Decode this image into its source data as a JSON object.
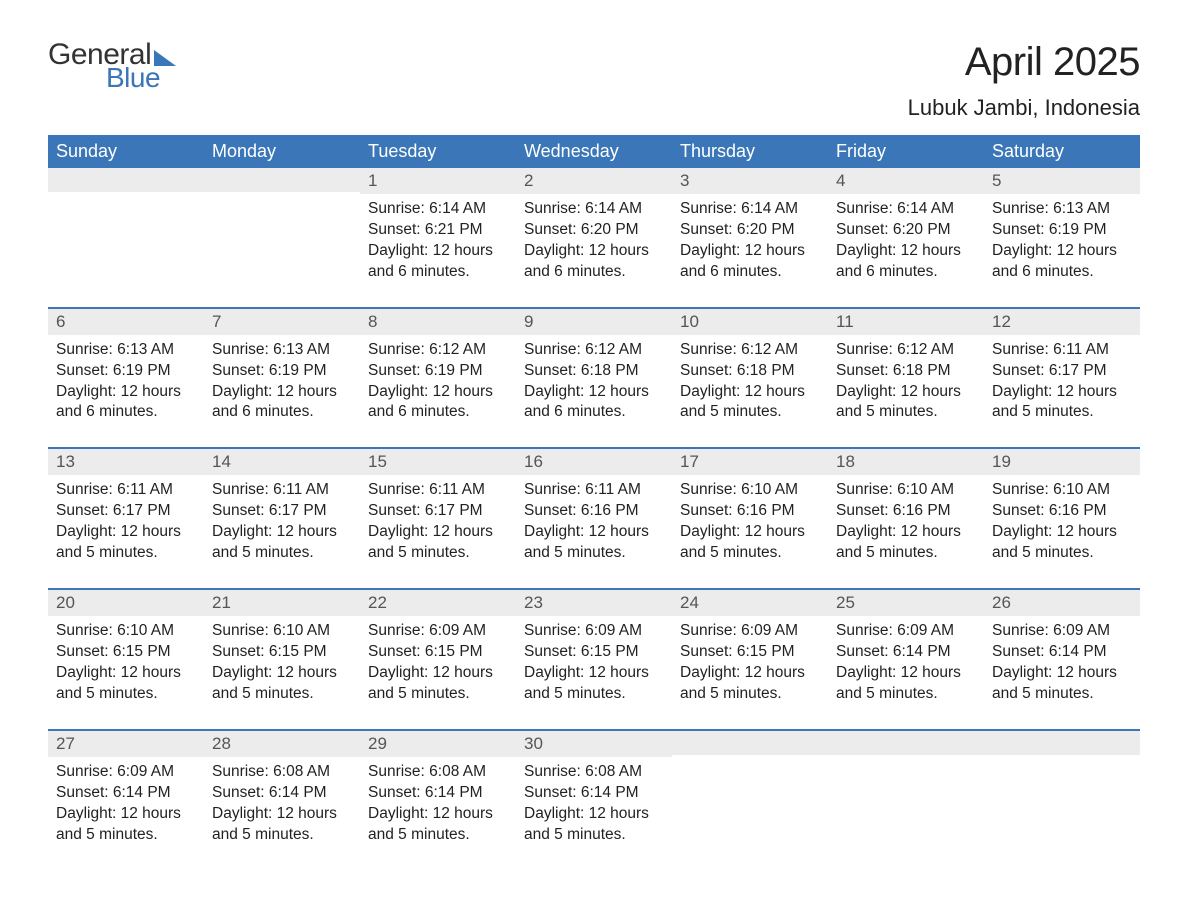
{
  "logo": {
    "text_general": "General",
    "text_blue": "Blue"
  },
  "title": {
    "month": "April 2025",
    "location": "Lubuk Jambi, Indonesia"
  },
  "colors": {
    "header_bg": "#3a76b8",
    "header_text": "#ffffff",
    "daynum_bg": "#ececec",
    "body_text": "#222222",
    "row_border": "#3a76b8",
    "page_bg": "#ffffff"
  },
  "day_headers": [
    "Sunday",
    "Monday",
    "Tuesday",
    "Wednesday",
    "Thursday",
    "Friday",
    "Saturday"
  ],
  "weeks": [
    [
      {
        "num": "",
        "lines": []
      },
      {
        "num": "",
        "lines": []
      },
      {
        "num": "1",
        "lines": [
          "Sunrise: 6:14 AM",
          "Sunset: 6:21 PM",
          "Daylight: 12 hours and 6 minutes."
        ]
      },
      {
        "num": "2",
        "lines": [
          "Sunrise: 6:14 AM",
          "Sunset: 6:20 PM",
          "Daylight: 12 hours and 6 minutes."
        ]
      },
      {
        "num": "3",
        "lines": [
          "Sunrise: 6:14 AM",
          "Sunset: 6:20 PM",
          "Daylight: 12 hours and 6 minutes."
        ]
      },
      {
        "num": "4",
        "lines": [
          "Sunrise: 6:14 AM",
          "Sunset: 6:20 PM",
          "Daylight: 12 hours and 6 minutes."
        ]
      },
      {
        "num": "5",
        "lines": [
          "Sunrise: 6:13 AM",
          "Sunset: 6:19 PM",
          "Daylight: 12 hours and 6 minutes."
        ]
      }
    ],
    [
      {
        "num": "6",
        "lines": [
          "Sunrise: 6:13 AM",
          "Sunset: 6:19 PM",
          "Daylight: 12 hours and 6 minutes."
        ]
      },
      {
        "num": "7",
        "lines": [
          "Sunrise: 6:13 AM",
          "Sunset: 6:19 PM",
          "Daylight: 12 hours and 6 minutes."
        ]
      },
      {
        "num": "8",
        "lines": [
          "Sunrise: 6:12 AM",
          "Sunset: 6:19 PM",
          "Daylight: 12 hours and 6 minutes."
        ]
      },
      {
        "num": "9",
        "lines": [
          "Sunrise: 6:12 AM",
          "Sunset: 6:18 PM",
          "Daylight: 12 hours and 6 minutes."
        ]
      },
      {
        "num": "10",
        "lines": [
          "Sunrise: 6:12 AM",
          "Sunset: 6:18 PM",
          "Daylight: 12 hours and 5 minutes."
        ]
      },
      {
        "num": "11",
        "lines": [
          "Sunrise: 6:12 AM",
          "Sunset: 6:18 PM",
          "Daylight: 12 hours and 5 minutes."
        ]
      },
      {
        "num": "12",
        "lines": [
          "Sunrise: 6:11 AM",
          "Sunset: 6:17 PM",
          "Daylight: 12 hours and 5 minutes."
        ]
      }
    ],
    [
      {
        "num": "13",
        "lines": [
          "Sunrise: 6:11 AM",
          "Sunset: 6:17 PM",
          "Daylight: 12 hours and 5 minutes."
        ]
      },
      {
        "num": "14",
        "lines": [
          "Sunrise: 6:11 AM",
          "Sunset: 6:17 PM",
          "Daylight: 12 hours and 5 minutes."
        ]
      },
      {
        "num": "15",
        "lines": [
          "Sunrise: 6:11 AM",
          "Sunset: 6:17 PM",
          "Daylight: 12 hours and 5 minutes."
        ]
      },
      {
        "num": "16",
        "lines": [
          "Sunrise: 6:11 AM",
          "Sunset: 6:16 PM",
          "Daylight: 12 hours and 5 minutes."
        ]
      },
      {
        "num": "17",
        "lines": [
          "Sunrise: 6:10 AM",
          "Sunset: 6:16 PM",
          "Daylight: 12 hours and 5 minutes."
        ]
      },
      {
        "num": "18",
        "lines": [
          "Sunrise: 6:10 AM",
          "Sunset: 6:16 PM",
          "Daylight: 12 hours and 5 minutes."
        ]
      },
      {
        "num": "19",
        "lines": [
          "Sunrise: 6:10 AM",
          "Sunset: 6:16 PM",
          "Daylight: 12 hours and 5 minutes."
        ]
      }
    ],
    [
      {
        "num": "20",
        "lines": [
          "Sunrise: 6:10 AM",
          "Sunset: 6:15 PM",
          "Daylight: 12 hours and 5 minutes."
        ]
      },
      {
        "num": "21",
        "lines": [
          "Sunrise: 6:10 AM",
          "Sunset: 6:15 PM",
          "Daylight: 12 hours and 5 minutes."
        ]
      },
      {
        "num": "22",
        "lines": [
          "Sunrise: 6:09 AM",
          "Sunset: 6:15 PM",
          "Daylight: 12 hours and 5 minutes."
        ]
      },
      {
        "num": "23",
        "lines": [
          "Sunrise: 6:09 AM",
          "Sunset: 6:15 PM",
          "Daylight: 12 hours and 5 minutes."
        ]
      },
      {
        "num": "24",
        "lines": [
          "Sunrise: 6:09 AM",
          "Sunset: 6:15 PM",
          "Daylight: 12 hours and 5 minutes."
        ]
      },
      {
        "num": "25",
        "lines": [
          "Sunrise: 6:09 AM",
          "Sunset: 6:14 PM",
          "Daylight: 12 hours and 5 minutes."
        ]
      },
      {
        "num": "26",
        "lines": [
          "Sunrise: 6:09 AM",
          "Sunset: 6:14 PM",
          "Daylight: 12 hours and 5 minutes."
        ]
      }
    ],
    [
      {
        "num": "27",
        "lines": [
          "Sunrise: 6:09 AM",
          "Sunset: 6:14 PM",
          "Daylight: 12 hours and 5 minutes."
        ]
      },
      {
        "num": "28",
        "lines": [
          "Sunrise: 6:08 AM",
          "Sunset: 6:14 PM",
          "Daylight: 12 hours and 5 minutes."
        ]
      },
      {
        "num": "29",
        "lines": [
          "Sunrise: 6:08 AM",
          "Sunset: 6:14 PM",
          "Daylight: 12 hours and 5 minutes."
        ]
      },
      {
        "num": "30",
        "lines": [
          "Sunrise: 6:08 AM",
          "Sunset: 6:14 PM",
          "Daylight: 12 hours and 5 minutes."
        ]
      },
      {
        "num": "",
        "lines": []
      },
      {
        "num": "",
        "lines": []
      },
      {
        "num": "",
        "lines": []
      }
    ]
  ]
}
